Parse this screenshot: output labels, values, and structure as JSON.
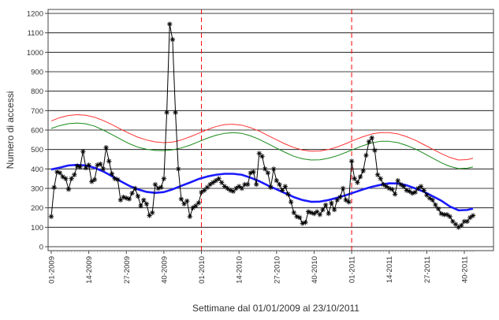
{
  "chart_data": {
    "type": "line",
    "title": "",
    "xlabel": "Settimane dal 01/01/2009 al 23/10/2011",
    "ylabel": "Numero di accessi",
    "ylim": [
      0,
      1200
    ],
    "yticks": [
      0,
      100,
      200,
      300,
      400,
      500,
      600,
      700,
      800,
      900,
      1000,
      1100,
      1200
    ],
    "grid": "horizontal",
    "legend": "none",
    "x_range": [
      1,
      147
    ],
    "x_tick_labels": [
      {
        "x": 1,
        "label": "01-2009"
      },
      {
        "x": 14,
        "label": "14-2009"
      },
      {
        "x": 27,
        "label": "27-2009"
      },
      {
        "x": 40,
        "label": "40-2009"
      },
      {
        "x": 53,
        "label": "01-2010"
      },
      {
        "x": 66,
        "label": "14-2010"
      },
      {
        "x": 79,
        "label": "27-2010"
      },
      {
        "x": 92,
        "label": "40-2010"
      },
      {
        "x": 105,
        "label": "01-2011"
      },
      {
        "x": 118,
        "label": "14-2011"
      },
      {
        "x": 131,
        "label": "27-2011"
      },
      {
        "x": 144,
        "label": "40-2011"
      }
    ],
    "vertical_reference_lines": [
      53,
      105
    ],
    "series": [
      {
        "color": "#000000",
        "style": "line-markers",
        "x": [
          1,
          2,
          3,
          4,
          5,
          6,
          7,
          8,
          9,
          10,
          11,
          12,
          13,
          14,
          15,
          16,
          17,
          18,
          19,
          20,
          21,
          22,
          23,
          24,
          25,
          26,
          27,
          28,
          29,
          30,
          31,
          32,
          33,
          34,
          35,
          36,
          37,
          38,
          39,
          40,
          41,
          42,
          43,
          44,
          45,
          46,
          47,
          48,
          49,
          50,
          51,
          52,
          53,
          54,
          55,
          56,
          57,
          58,
          59,
          60,
          61,
          62,
          63,
          64,
          65,
          66,
          67,
          68,
          69,
          70,
          71,
          72,
          73,
          74,
          75,
          76,
          77,
          78,
          79,
          80,
          81,
          82,
          83,
          84,
          85,
          86,
          87,
          88,
          89,
          90,
          91,
          92,
          93,
          94,
          95,
          96,
          97,
          98,
          99,
          100,
          101,
          102,
          103,
          104,
          105,
          106,
          107,
          108,
          109,
          110,
          111,
          112,
          113,
          114,
          115,
          116,
          117,
          118,
          119,
          120,
          121,
          122,
          123,
          124,
          125,
          126,
          127,
          128,
          129,
          130,
          131,
          132,
          133,
          134,
          135,
          136,
          137,
          138,
          139,
          140,
          141,
          142,
          143,
          144,
          145,
          146,
          147
        ],
        "values": [
          155,
          305,
          385,
          380,
          360,
          350,
          295,
          350,
          370,
          415,
          410,
          490,
          405,
          420,
          335,
          345,
          420,
          425,
          400,
          510,
          440,
          375,
          350,
          345,
          240,
          255,
          250,
          245,
          275,
          300,
          260,
          210,
          240,
          220,
          160,
          175,
          320,
          300,
          305,
          350,
          690,
          1145,
          1065,
          690,
          400,
          245,
          220,
          235,
          155,
          200,
          210,
          225,
          280,
          290,
          305,
          320,
          330,
          340,
          350,
          330,
          310,
          300,
          290,
          285,
          300,
          310,
          300,
          320,
          320,
          380,
          385,
          320,
          480,
          465,
          400,
          380,
          305,
          400,
          340,
          320,
          290,
          310,
          270,
          230,
          175,
          155,
          150,
          120,
          125,
          180,
          175,
          170,
          180,
          165,
          190,
          215,
          170,
          225,
          190,
          240,
          255,
          300,
          240,
          230,
          440,
          350,
          330,
          360,
          390,
          470,
          540,
          560,
          495,
          370,
          350,
          320,
          310,
          300,
          295,
          270,
          340,
          320,
          310,
          290,
          285,
          275,
          280,
          300,
          310,
          290,
          265,
          250,
          240,
          215,
          195,
          170,
          165,
          165,
          155,
          130,
          115,
          100,
          110,
          130,
          130,
          150,
          160
        ]
      },
      {
        "color": "#1a1aff",
        "style": "line",
        "x": [
          1,
          4,
          7,
          10,
          13,
          16,
          19,
          22,
          25,
          28,
          31,
          34,
          37,
          40,
          43,
          46,
          49,
          52,
          55,
          58,
          61,
          64,
          67,
          70,
          73,
          76,
          79,
          82,
          85,
          88,
          91,
          94,
          97,
          100,
          103,
          106,
          109,
          112,
          115,
          118,
          121,
          124,
          127,
          130,
          133,
          136,
          139,
          142,
          145,
          147
        ],
        "values": [
          397,
          407,
          418,
          421,
          418,
          406,
          387,
          363,
          337,
          313,
          295,
          282,
          277,
          281,
          295,
          313,
          330,
          348,
          361,
          370,
          375,
          375,
          370,
          355,
          337,
          315,
          295,
          275,
          255,
          240,
          231,
          232,
          240,
          252,
          265,
          280,
          295,
          308,
          318,
          326,
          325,
          316,
          300,
          283,
          260,
          237,
          207,
          187,
          189,
          196
        ]
      },
      {
        "color": "#ff3333",
        "style": "line",
        "x": [
          1,
          4,
          7,
          10,
          13,
          16,
          19,
          22,
          25,
          28,
          31,
          34,
          37,
          40,
          43,
          46,
          49,
          52,
          55,
          58,
          61,
          64,
          67,
          70,
          73,
          76,
          79,
          82,
          85,
          88,
          91,
          94,
          97,
          100,
          103,
          106,
          109,
          112,
          115,
          118,
          121,
          124,
          127,
          130,
          133,
          136,
          139,
          142,
          145,
          147
        ],
        "values": [
          647,
          664,
          675,
          679,
          676,
          666,
          649,
          628,
          605,
          583,
          563,
          549,
          539,
          535,
          538,
          549,
          565,
          583,
          602,
          618,
          628,
          630,
          625,
          612,
          595,
          572,
          550,
          528,
          510,
          497,
          491,
          492,
          500,
          513,
          530,
          549,
          566,
          580,
          587,
          587,
          580,
          566,
          548,
          525,
          502,
          479,
          459,
          446,
          448,
          455
        ]
      },
      {
        "color": "#1a8a1a",
        "style": "line",
        "x": [
          1,
          4,
          7,
          10,
          13,
          16,
          19,
          22,
          25,
          28,
          31,
          34,
          37,
          40,
          43,
          46,
          49,
          52,
          55,
          58,
          61,
          64,
          67,
          70,
          73,
          76,
          79,
          82,
          85,
          88,
          91,
          94,
          97,
          100,
          103,
          106,
          109,
          112,
          115,
          118,
          121,
          124,
          127,
          130,
          133,
          136,
          139,
          142,
          145,
          147
        ],
        "values": [
          608,
          623,
          633,
          636,
          632,
          620,
          600,
          577,
          553,
          530,
          512,
          501,
          495,
          494,
          498,
          508,
          522,
          540,
          558,
          573,
          583,
          587,
          583,
          570,
          552,
          530,
          507,
          485,
          465,
          452,
          446,
          447,
          455,
          468,
          485,
          503,
          520,
          534,
          542,
          542,
          535,
          521,
          503,
          480,
          456,
          432,
          413,
          402,
          404,
          410
        ]
      }
    ]
  }
}
